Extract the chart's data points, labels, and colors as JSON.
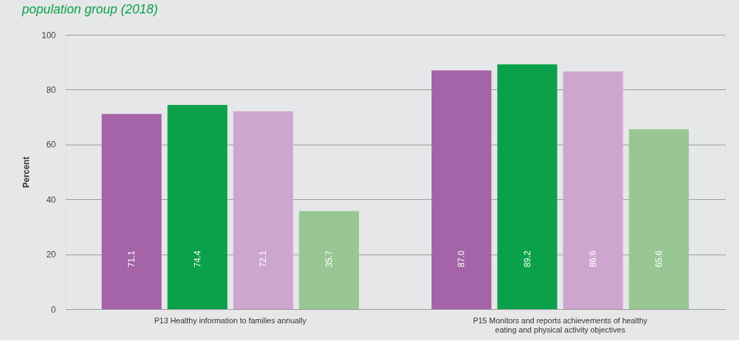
{
  "chart_data": {
    "type": "bar",
    "title": "population group (2018)",
    "ylabel": "Percent",
    "categories": [
      "P13 Healthy information to families annually",
      "P15 Monitors and reports achievements of healthy eating and physical activity objectives"
    ],
    "series": [
      {
        "color": "#a564a8",
        "values": [
          71.1,
          87.0
        ],
        "value_labels": [
          "71.1",
          "87.0"
        ]
      },
      {
        "color": "#0ba14a",
        "values": [
          74.4,
          89.2
        ],
        "value_labels": [
          "74.4",
          "89.2"
        ]
      },
      {
        "color": "#cca6cf",
        "values": [
          72.1,
          86.6
        ],
        "value_labels": [
          "72.1",
          "86.6"
        ]
      },
      {
        "color": "#98c794",
        "values": [
          35.7,
          65.6
        ],
        "value_labels": [
          "35.7",
          "65.6"
        ]
      }
    ],
    "ylim": [
      0,
      100
    ],
    "yticks": [
      0,
      20,
      40,
      60,
      80,
      100
    ],
    "grid": "y",
    "legend": false
  }
}
